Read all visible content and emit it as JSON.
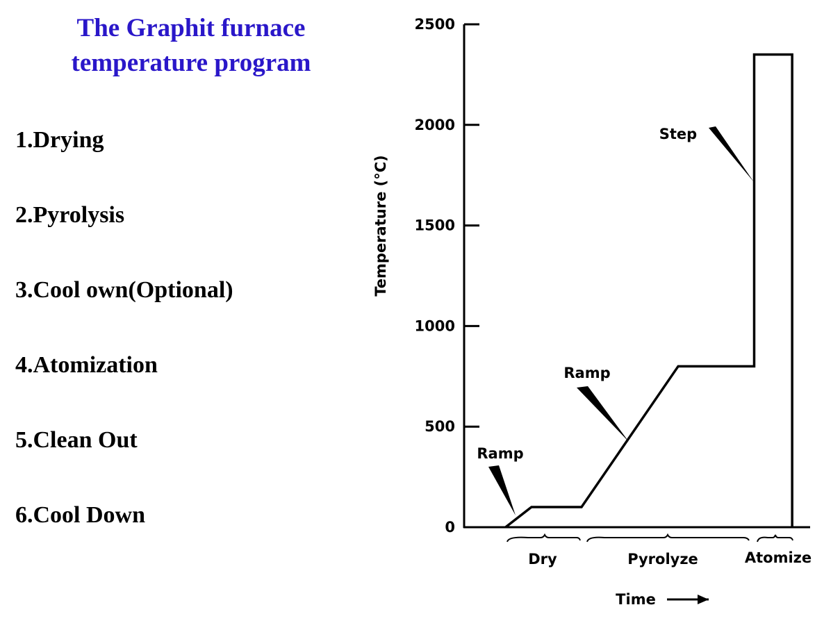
{
  "title": [
    "The Graphit furnace",
    "temperature program"
  ],
  "items": [
    "1.Drying",
    "2.Pyrolysis",
    "3.Cool own(Optional)",
    "4.Atomization",
    "5.Clean Out",
    "6.Cool Down"
  ],
  "chart_data": {
    "type": "line",
    "x": [
      12,
      19.5,
      34,
      62,
      84,
      84,
      95,
      95
    ],
    "values": [
      0,
      100,
      100,
      800,
      800,
      2350,
      2350,
      0
    ],
    "color": "#000000",
    "xlim": [
      0,
      100
    ],
    "ylim": [
      0,
      2500
    ],
    "yticks": [
      0,
      500,
      1000,
      1500,
      2000,
      2500
    ],
    "grid": false,
    "ylabel": "Temperature (°C)",
    "xlabel": "Time",
    "annotations": [
      "Ramp",
      "Ramp",
      "Step"
    ],
    "phases": [
      "Dry",
      "Pyrolyze",
      "Atomize"
    ]
  }
}
